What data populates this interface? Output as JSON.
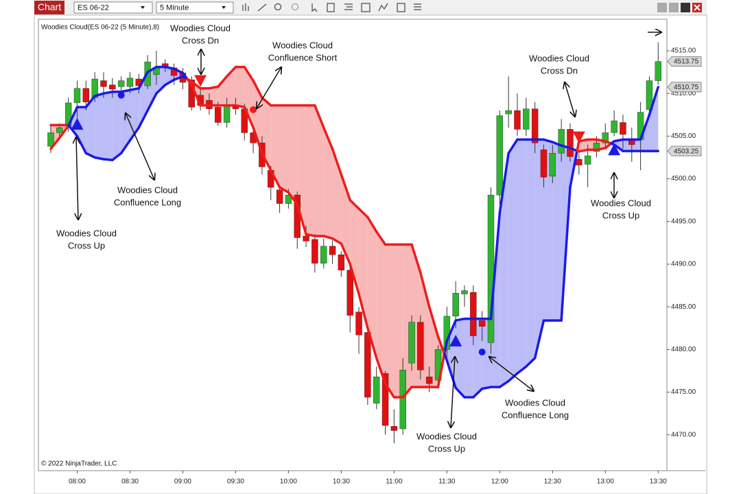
{
  "toolbar": {
    "app": "Chart",
    "instrument": "ES 06-22",
    "interval": "5 Minute"
  },
  "chart_data": {
    "type": "candlestick",
    "title": "Woodies Cloud(ES 06-22 (5 Minute),8)",
    "footer": "© 2022 NinjaTrader, LLC",
    "categories": [
      null,
      null,
      null,
      "08:00",
      null,
      null,
      null,
      null,
      null,
      "08:30",
      null,
      null,
      null,
      null,
      null,
      "09:00",
      null,
      null,
      null,
      null,
      null,
      "09:30",
      null,
      null,
      null,
      null,
      null,
      "10:00",
      null,
      null,
      null,
      null,
      null,
      "10:30",
      null,
      null,
      null,
      null,
      null,
      "11:00",
      null,
      null,
      null,
      null,
      null,
      "11:30",
      null,
      null,
      null,
      null,
      null,
      "12:00",
      null,
      null,
      null,
      null,
      null,
      "12:30",
      null,
      null,
      null,
      null,
      null,
      "13:00",
      null,
      null,
      null,
      null,
      null,
      "13:30"
    ],
    "open": [
      4503.8,
      4505.4,
      4506.2,
      4508.9,
      4510.6,
      4509.5,
      4511.5,
      4511.0,
      4510.8,
      4510.8,
      4511.7,
      4510.9,
      4512.2,
      4513.5,
      4513.0,
      4512.4,
      4511.6,
      4509.8,
      4509.2,
      4508.4,
      4506.6,
      4508.6,
      4508.2,
      4505.4,
      4504.2,
      4501.0,
      4498.7,
      4497.1,
      4498.1,
      4493.3,
      4492.9,
      4490.1,
      4492.1,
      4491.1,
      4489.3,
      4484.4,
      4482.0,
      4473.7,
      4477.2,
      4471.0,
      4470.7,
      4478.4,
      4483.2,
      4476.8,
      4476.4,
      4480.0,
      4483.9,
      4486.5,
      4486.7,
      4483.4,
      4480.8,
      4498.1,
      4507.6,
      4508.0,
      4505.8,
      4508.2,
      4503.4,
      4500.3,
      4503.0,
      4505.8,
      4502.3,
      4501.7,
      4503.2,
      4504.2,
      4505.4,
      4506.6,
      4504.6,
      4504.6,
      4508.1,
      4511.5
    ],
    "high": [
      4506.2,
      4506.5,
      4509.5,
      4511.5,
      4511.5,
      4512.5,
      4512.5,
      4511.8,
      4512.0,
      4512.5,
      4512.3,
      4514.5,
      4515.0,
      4514.0,
      4513.5,
      4513.0,
      4512.0,
      4510.5,
      4510.0,
      4509.0,
      4509.5,
      4509.5,
      4508.8,
      4506.0,
      4505.0,
      4501.5,
      4499.0,
      4498.8,
      4498.5,
      4494.5,
      4493.5,
      4493.0,
      4492.8,
      4491.5,
      4490.0,
      4485.0,
      4482.5,
      4478.0,
      4477.5,
      4473.0,
      4479.0,
      4484.0,
      4484.0,
      4478.0,
      4480.5,
      4485.0,
      4488.0,
      4487.5,
      4487.5,
      4484.5,
      4499.0,
      4508.0,
      4512.0,
      4510.0,
      4509.5,
      4509.0,
      4504.0,
      4504.0,
      4507.0,
      4506.5,
      4503.0,
      4504.0,
      4505.0,
      4506.5,
      4508.0,
      4507.5,
      4506.0,
      4509.0,
      4512.0,
      4516.0
    ],
    "low": [
      4503.0,
      4505.0,
      4505.5,
      4507.0,
      4508.0,
      4509.0,
      4509.5,
      4509.5,
      4510.0,
      4510.0,
      4510.0,
      4510.5,
      4511.0,
      4512.5,
      4511.0,
      4510.5,
      4508.0,
      4508.0,
      4507.5,
      4506.2,
      4506.0,
      4507.5,
      4504.5,
      4503.0,
      4500.5,
      4497.5,
      4496.0,
      4496.5,
      4491.8,
      4492.0,
      4489.0,
      4489.5,
      4490.0,
      4488.5,
      4482.0,
      4479.5,
      4473.5,
      4473.0,
      4470.0,
      4469.0,
      4470.0,
      4477.5,
      4476.5,
      4475.0,
      4476.0,
      4479.0,
      4482.5,
      4485.0,
      4480.5,
      4481.0,
      4479.5,
      4497.0,
      4506.0,
      4505.0,
      4505.0,
      4503.0,
      4499.0,
      4499.5,
      4502.0,
      4502.0,
      4500.5,
      4499.0,
      4502.5,
      4503.5,
      4505.0,
      4503.5,
      4502.0,
      4501.0,
      4507.5,
      4511.0
    ],
    "close": [
      4505.4,
      4506.0,
      4508.9,
      4510.6,
      4509.0,
      4511.7,
      4510.8,
      4510.5,
      4511.5,
      4511.8,
      4510.9,
      4513.7,
      4513.0,
      4513.1,
      4512.1,
      4511.3,
      4508.4,
      4508.6,
      4508.2,
      4506.6,
      4508.6,
      4508.2,
      4505.4,
      4504.2,
      4501.4,
      4499.0,
      4497.1,
      4498.1,
      4493.1,
      4492.7,
      4490.1,
      4492.1,
      4491.1,
      4489.3,
      4484.0,
      4481.7,
      4474.4,
      4476.8,
      4471.1,
      4470.5,
      4477.6,
      4483.2,
      4477.6,
      4476.0,
      4480.0,
      4483.9,
      4486.6,
      4486.9,
      4481.6,
      4482.7,
      4498.1,
      4507.4,
      4508.0,
      4505.8,
      4508.2,
      4504.2,
      4500.2,
      4503.0,
      4505.8,
      4502.6,
      4501.6,
      4502.7,
      4504.2,
      4505.4,
      4506.8,
      4505.2,
      4504.0,
      4507.8,
      4511.5,
      4513.75
    ],
    "up_color": "#2fb52f",
    "down_color": "#e31010",
    "wick_color": "#333333",
    "cloud": {
      "fast": [
        4503.5,
        4504.8,
        4506.2,
        4508.4,
        4508.4,
        4509.7,
        4510.0,
        4510.2,
        4510.2,
        4510.4,
        4510.6,
        4512.5,
        4513.1,
        4513.1,
        4512.9,
        4512.4,
        4511.0,
        4508.6,
        4508.6,
        4508.6,
        4508.6,
        4508.6,
        4508.4,
        4506.0,
        4503.0,
        4501.0,
        4499.0,
        4498.4,
        4497.0,
        4493.5,
        4493.3,
        4493.3,
        4493.0,
        4492.4,
        4490.0,
        4486.5,
        4482.5,
        4479.0,
        4476.0,
        4474.4,
        4474.4,
        4475.6,
        4475.6,
        4475.6,
        4475.6,
        4481.0,
        4483.4,
        4483.6,
        4483.6,
        4483.6,
        4483.6,
        4496.0,
        4503.0,
        4504.6,
        4504.6,
        4504.6,
        4504.6,
        4504.3,
        4503.9,
        4503.6,
        4503.2,
        4503.4,
        4503.4,
        4503.6,
        4504.4,
        4504.6,
        4504.6,
        4504.6,
        4507.5,
        4510.75
      ],
      "slow": [
        4506.3,
        4506.3,
        4506.3,
        4505.0,
        4503.0,
        4502.5,
        4502.3,
        4502.2,
        4503.0,
        4504.5,
        4506.0,
        4508.0,
        4510.0,
        4511.0,
        4511.6,
        4512.0,
        4511.4,
        4510.6,
        4510.6,
        4510.8,
        4512.0,
        4513.1,
        4513.1,
        4511.5,
        4509.5,
        4508.6,
        4508.6,
        4508.6,
        4508.6,
        4508.6,
        4508.6,
        4506.0,
        4503.5,
        4500.5,
        4497.5,
        4496.5,
        4495.5,
        4493.8,
        4492.3,
        4492.3,
        4492.3,
        4492.3,
        4489.0,
        4485.0,
        4481.5,
        4478.7,
        4475.5,
        4474.4,
        4474.4,
        4475.4,
        4475.6,
        4475.6,
        4476.3,
        4477.2,
        4478.0,
        4479.0,
        4483.4,
        4483.4,
        4483.4,
        4499.0,
        4504.4,
        4504.6,
        4504.6,
        4504.4,
        4504.0,
        4503.25,
        4503.25,
        4503.25,
        4503.25,
        4503.25
      ],
      "up_line_color": "#1a1ae8",
      "down_line_color": "#ee1c1c",
      "up_fill_color": "#bcbcf8",
      "down_fill_color": "#f8b8b8"
    },
    "signals": [
      {
        "bar": 3,
        "value": 4506.4,
        "shape": "triangle-up",
        "color": "#1a1ae8"
      },
      {
        "bar": 8,
        "value": 4509.8,
        "shape": "dot",
        "color": "#1a1ae8"
      },
      {
        "bar": 17,
        "value": 4511.5,
        "shape": "triangle-down",
        "color": "#ee1c1c"
      },
      {
        "bar": 23,
        "value": 4508.1,
        "shape": "dot",
        "color": "#ee1c1c"
      },
      {
        "bar": 46,
        "value": 4481.0,
        "shape": "triangle-up",
        "color": "#1a1ae8"
      },
      {
        "bar": 49,
        "value": 4479.7,
        "shape": "dot",
        "color": "#1a1ae8"
      },
      {
        "bar": 60,
        "value": 4504.9,
        "shape": "triangle-down",
        "color": "#ee1c1c"
      },
      {
        "bar": 64,
        "value": 4503.4,
        "shape": "triangle-up",
        "color": "#1a1ae8"
      }
    ],
    "price_markers": [
      4513.75,
      4510.75,
      4503.25
    ],
    "annotations": [
      {
        "lines": [
          "Woodies Cloud",
          "Cross Dn"
        ]
      },
      {
        "lines": [
          "Woodies Cloud",
          "Confluence Short"
        ]
      },
      {
        "lines": [
          "Woodies Cloud",
          "Cross Dn"
        ]
      },
      {
        "lines": [
          "Woodies Cloud",
          "Confluence Long"
        ]
      },
      {
        "lines": [
          "Woodies Cloud",
          "Cross Up"
        ]
      },
      {
        "lines": [
          "Woodies Cloud",
          "Cross Up"
        ]
      },
      {
        "lines": [
          "Woodies Cloud",
          "Cross Up"
        ]
      },
      {
        "lines": [
          "Woodies Cloud",
          "Confluence Long"
        ]
      }
    ],
    "ylim": [
      4465.8,
      4518.7
    ],
    "yticks": [
      {
        "value": 4470,
        "label": "4470.00"
      },
      {
        "value": 4475,
        "label": "4475.00"
      },
      {
        "value": 4480,
        "label": "4480.00"
      },
      {
        "value": 4485,
        "label": "4485.00"
      },
      {
        "value": 4490,
        "label": "4490.00"
      },
      {
        "value": 4495,
        "label": "4495.00"
      },
      {
        "value": 4500,
        "label": "4500.00"
      },
      {
        "value": 4505,
        "label": "4505.00"
      },
      {
        "value": 4510,
        "label": "4510.00"
      },
      {
        "value": 4515,
        "label": "4515.00"
      }
    ]
  }
}
